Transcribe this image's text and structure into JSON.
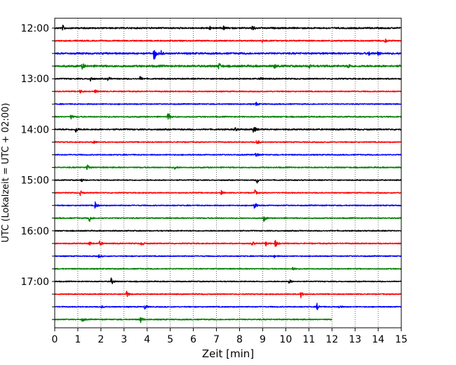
{
  "chart_data": {
    "type": "line",
    "subtype": "helicorder",
    "xlabel": "Zeit  [min]",
    "ylabel": "UTC (Lokalzeit = UTC + 02:00)",
    "xlim": [
      0,
      15
    ],
    "x_ticks": [
      "0",
      "1",
      "2",
      "3",
      "4",
      "5",
      "6",
      "7",
      "8",
      "9",
      "10",
      "11",
      "12",
      "13",
      "14",
      "15"
    ],
    "y_tick_labels": [
      "12:00",
      "13:00",
      "14:00",
      "15:00",
      "16:00",
      "17:00"
    ],
    "trace_minutes": 15,
    "grid": "vertical dotted",
    "colors": [
      "#000000",
      "#ff0000",
      "#0000ff",
      "#008000"
    ],
    "traces": [
      {
        "start": "12:00",
        "color": "#000000",
        "end_min": 15,
        "noise": 1.2,
        "events": [
          {
            "t": 0.35,
            "a": 3.5
          },
          {
            "t": 6.7,
            "a": 2.6
          },
          {
            "t": 7.3,
            "a": 2.6
          },
          {
            "t": 8.55,
            "a": 5
          }
        ]
      },
      {
        "start": "12:15",
        "color": "#ff0000",
        "end_min": 15,
        "noise": 1.0,
        "events": [
          {
            "t": 9.0,
            "a": 3
          },
          {
            "t": 14.3,
            "a": 2.6
          }
        ]
      },
      {
        "start": "12:30",
        "color": "#0000ff",
        "end_min": 15,
        "noise": 1.4,
        "events": [
          {
            "t": 4.3,
            "a": 11
          },
          {
            "t": 4.6,
            "a": 4
          },
          {
            "t": 13.6,
            "a": 3
          },
          {
            "t": 14.0,
            "a": 3
          }
        ]
      },
      {
        "start": "12:45",
        "color": "#008000",
        "end_min": 15,
        "noise": 1.6,
        "events": [
          {
            "t": 1.2,
            "a": 4
          },
          {
            "t": 7.1,
            "a": 5
          },
          {
            "t": 9.5,
            "a": 3
          },
          {
            "t": 11.0,
            "a": 3.5
          },
          {
            "t": 12.7,
            "a": 3
          }
        ]
      },
      {
        "start": "13:00",
        "color": "#000000",
        "end_min": 15,
        "noise": 1.0,
        "events": [
          {
            "t": 1.55,
            "a": 4
          },
          {
            "t": 2.3,
            "a": 3
          },
          {
            "t": 3.7,
            "a": 3
          },
          {
            "t": 8.9,
            "a": 3
          }
        ]
      },
      {
        "start": "13:15",
        "color": "#ff0000",
        "end_min": 15,
        "noise": 0.8,
        "events": [
          {
            "t": 1.1,
            "a": 2.5
          },
          {
            "t": 1.75,
            "a": 2.5
          }
        ]
      },
      {
        "start": "13:30",
        "color": "#0000ff",
        "end_min": 15,
        "noise": 0.8,
        "events": [
          {
            "t": 8.7,
            "a": 3
          }
        ]
      },
      {
        "start": "13:45",
        "color": "#008000",
        "end_min": 15,
        "noise": 0.9,
        "events": [
          {
            "t": 0.7,
            "a": 3
          },
          {
            "t": 4.9,
            "a": 7
          }
        ]
      },
      {
        "start": "14:00",
        "color": "#000000",
        "end_min": 15,
        "noise": 1.1,
        "events": [
          {
            "t": 0.9,
            "a": 5
          },
          {
            "t": 7.8,
            "a": 2.6
          },
          {
            "t": 8.6,
            "a": 6
          }
        ]
      },
      {
        "start": "14:15",
        "color": "#ff0000",
        "end_min": 15,
        "noise": 0.8,
        "events": [
          {
            "t": 1.65,
            "a": 3.5
          },
          {
            "t": 8.75,
            "a": 5
          }
        ]
      },
      {
        "start": "14:30",
        "color": "#0000ff",
        "end_min": 15,
        "noise": 0.8,
        "events": [
          {
            "t": 8.7,
            "a": 4
          }
        ]
      },
      {
        "start": "14:45",
        "color": "#008000",
        "end_min": 15,
        "noise": 0.9,
        "events": [
          {
            "t": 1.4,
            "a": 4.5
          },
          {
            "t": 5.2,
            "a": 2.6
          }
        ]
      },
      {
        "start": "15:00",
        "color": "#000000",
        "end_min": 15,
        "noise": 0.8,
        "events": [
          {
            "t": 1.15,
            "a": 2.5
          },
          {
            "t": 8.75,
            "a": 5
          }
        ]
      },
      {
        "start": "15:15",
        "color": "#ff0000",
        "end_min": 15,
        "noise": 0.8,
        "events": [
          {
            "t": 1.1,
            "a": 3.5
          },
          {
            "t": 7.2,
            "a": 3
          },
          {
            "t": 8.65,
            "a": 4.5
          }
        ]
      },
      {
        "start": "15:30",
        "color": "#0000ff",
        "end_min": 15,
        "noise": 0.8,
        "events": [
          {
            "t": 1.75,
            "a": 5
          },
          {
            "t": 8.65,
            "a": 5.5
          }
        ]
      },
      {
        "start": "15:45",
        "color": "#008000",
        "end_min": 15,
        "noise": 0.9,
        "events": [
          {
            "t": 1.5,
            "a": 5
          },
          {
            "t": 9.05,
            "a": 4.5
          }
        ]
      },
      {
        "start": "16:00",
        "color": "#000000",
        "end_min": 15,
        "noise": 0.8,
        "events": []
      },
      {
        "start": "16:15",
        "color": "#ff0000",
        "end_min": 15,
        "noise": 0.9,
        "events": [
          {
            "t": 1.5,
            "a": 3
          },
          {
            "t": 1.95,
            "a": 3.5
          },
          {
            "t": 3.75,
            "a": 3
          },
          {
            "t": 8.55,
            "a": 3
          },
          {
            "t": 9.15,
            "a": 4.5
          },
          {
            "t": 9.55,
            "a": 6
          }
        ]
      },
      {
        "start": "16:30",
        "color": "#0000ff",
        "end_min": 15,
        "noise": 0.8,
        "events": [
          {
            "t": 1.9,
            "a": 2.5
          },
          {
            "t": 9.5,
            "a": 2.5
          }
        ]
      },
      {
        "start": "16:45",
        "color": "#008000",
        "end_min": 15,
        "noise": 0.8,
        "events": [
          {
            "t": 10.3,
            "a": 3
          }
        ]
      },
      {
        "start": "17:00",
        "color": "#000000",
        "end_min": 15,
        "noise": 0.8,
        "events": [
          {
            "t": 2.45,
            "a": 5
          },
          {
            "t": 10.15,
            "a": 3
          }
        ]
      },
      {
        "start": "17:15",
        "color": "#ff0000",
        "end_min": 15,
        "noise": 0.8,
        "events": [
          {
            "t": 3.1,
            "a": 5.5
          },
          {
            "t": 10.65,
            "a": 5
          }
        ]
      },
      {
        "start": "17:30",
        "color": "#0000ff",
        "end_min": 15,
        "noise": 0.8,
        "events": [
          {
            "t": 2.0,
            "a": 2.5
          },
          {
            "t": 3.9,
            "a": 4
          },
          {
            "t": 11.35,
            "a": 5
          },
          {
            "t": 12.3,
            "a": 2.5
          }
        ]
      },
      {
        "start": "17:45",
        "color": "#008000",
        "end_min": 12,
        "noise": 0.9,
        "events": [
          {
            "t": 1.2,
            "a": 3
          },
          {
            "t": 3.7,
            "a": 5.5
          }
        ]
      }
    ]
  }
}
